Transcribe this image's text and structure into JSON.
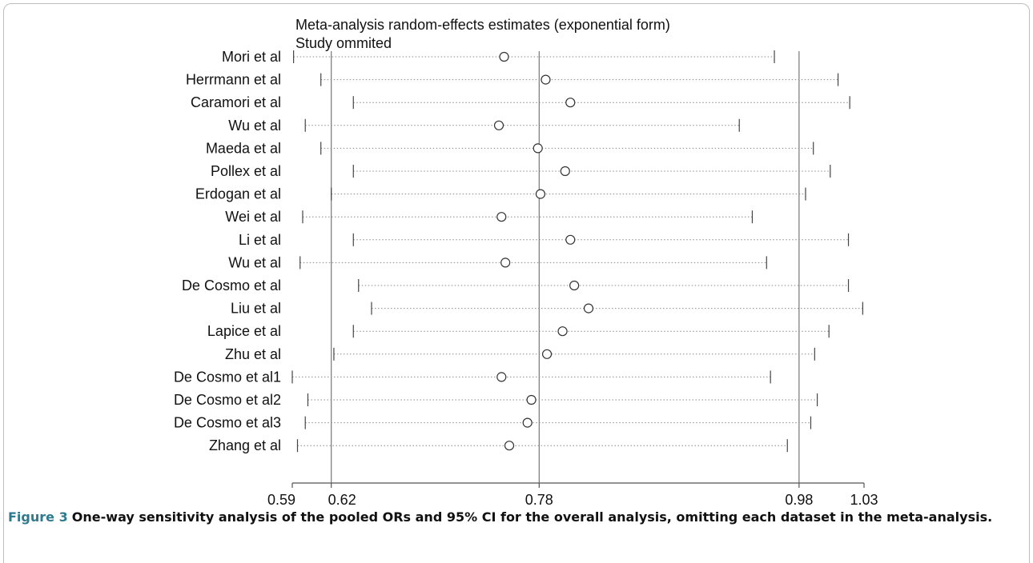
{
  "chart_data": {
    "type": "forest",
    "title": "Meta-analysis random-effects estimates (exponential form)",
    "subtitle": "Study ommited",
    "x_ticks": [
      0.59,
      0.62,
      0.78,
      0.98,
      1.03
    ],
    "x_tick_labels": [
      "0.59",
      "0.62",
      "0.78",
      "0.98",
      "1.03"
    ],
    "xlim": [
      0.59,
      1.03
    ],
    "vertical_reference_lines": [
      0.62,
      0.78,
      0.98
    ],
    "grid": false,
    "studies": [
      {
        "label": "Mori et al",
        "estimate": 0.753,
        "lower": 0.591,
        "upper": 0.961
      },
      {
        "label": "Herrmann et al",
        "estimate": 0.785,
        "lower": 0.612,
        "upper": 1.01
      },
      {
        "label": "Caramori et al",
        "estimate": 0.804,
        "lower": 0.637,
        "upper": 1.019
      },
      {
        "label": "Wu et al",
        "estimate": 0.749,
        "lower": 0.6,
        "upper": 0.934
      },
      {
        "label": "Maeda et al",
        "estimate": 0.779,
        "lower": 0.612,
        "upper": 0.991
      },
      {
        "label": "Pollex et al",
        "estimate": 0.8,
        "lower": 0.637,
        "upper": 1.004
      },
      {
        "label": "Erdogan et al",
        "estimate": 0.781,
        "lower": 0.62,
        "upper": 0.985
      },
      {
        "label": "Wei et al",
        "estimate": 0.751,
        "lower": 0.598,
        "upper": 0.944
      },
      {
        "label": "Li et al",
        "estimate": 0.804,
        "lower": 0.637,
        "upper": 1.018
      },
      {
        "label": "Wu et al",
        "estimate": 0.754,
        "lower": 0.596,
        "upper": 0.955
      },
      {
        "label": "De Cosmo et al",
        "estimate": 0.807,
        "lower": 0.641,
        "upper": 1.018
      },
      {
        "label": "Liu et al",
        "estimate": 0.818,
        "lower": 0.651,
        "upper": 1.029
      },
      {
        "label": "Lapice et al",
        "estimate": 0.798,
        "lower": 0.637,
        "upper": 1.003
      },
      {
        "label": "Zhu et al",
        "estimate": 0.786,
        "lower": 0.622,
        "upper": 0.992
      },
      {
        "label": "De Cosmo et al1",
        "estimate": 0.751,
        "lower": 0.59,
        "upper": 0.958
      },
      {
        "label": "De Cosmo et al2",
        "estimate": 0.774,
        "lower": 0.602,
        "upper": 0.994
      },
      {
        "label": "De Cosmo et al3",
        "estimate": 0.771,
        "lower": 0.6,
        "upper": 0.989
      },
      {
        "label": "Zhang et al",
        "estimate": 0.757,
        "lower": 0.594,
        "upper": 0.971
      }
    ]
  },
  "caption": {
    "label": "Figure 3",
    "text": "One-way sensitivity analysis of the pooled ORs and 95% CI for the overall analysis, omitting each dataset in the meta-analysis."
  }
}
